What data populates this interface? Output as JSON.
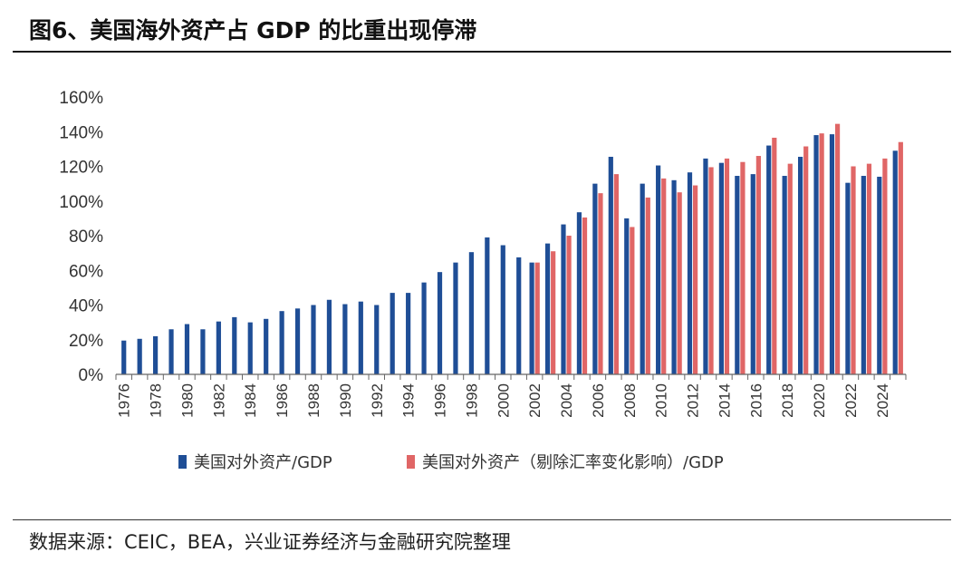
{
  "title": "图6、美国海外资产占 GDP 的比重出现停滞",
  "source": "数据来源：CEIC，BEA，兴业证券经济与金融研究院整理",
  "chart_data": {
    "type": "bar",
    "categories": [
      "1976",
      "1977",
      "1978",
      "1979",
      "1980",
      "1981",
      "1982",
      "1983",
      "1984",
      "1985",
      "1986",
      "1987",
      "1988",
      "1989",
      "1990",
      "1991",
      "1992",
      "1993",
      "1994",
      "1995",
      "1996",
      "1997",
      "1998",
      "1999",
      "2000",
      "2001",
      "2002",
      "2003",
      "2004",
      "2005",
      "2006",
      "2007",
      "2008",
      "2009",
      "2010",
      "2011",
      "2012",
      "2013",
      "2014",
      "2015",
      "2016",
      "2017",
      "2018",
      "2019",
      "2020",
      "2021",
      "2022",
      "2023",
      "2024",
      "2025"
    ],
    "x_tick_labels": [
      "1976",
      "1978",
      "1980",
      "1982",
      "1984",
      "1986",
      "1988",
      "1990",
      "1992",
      "1994",
      "1996",
      "1998",
      "2000",
      "2002",
      "2004",
      "2006",
      "2008",
      "2010",
      "2012",
      "2014",
      "2016",
      "2018",
      "2020",
      "2022",
      "2024"
    ],
    "series": [
      {
        "name": "美国对外资产/GDP",
        "color": "#1f4e96",
        "values": [
          19.5,
          20.5,
          22,
          26,
          29,
          26,
          30.5,
          33,
          30,
          32,
          36.5,
          38,
          40,
          43,
          40.5,
          42,
          40,
          47,
          47,
          53,
          59,
          64.5,
          70.5,
          79,
          74.5,
          67.5,
          64.5,
          75.5,
          86.5,
          93.5,
          110,
          125.5,
          90,
          110,
          120.5,
          112,
          116.5,
          124.5,
          122,
          114.5,
          115.5,
          132,
          114.5,
          125.5,
          138,
          138.5,
          110.5,
          114.5,
          114,
          129
        ]
      },
      {
        "name": "美国对外资产（剔除汇率变化影响）/GDP",
        "color": "#e06666",
        "values": [
          null,
          null,
          null,
          null,
          null,
          null,
          null,
          null,
          null,
          null,
          null,
          null,
          null,
          null,
          null,
          null,
          null,
          null,
          null,
          null,
          null,
          null,
          null,
          null,
          null,
          null,
          64.5,
          71,
          80,
          90.5,
          104.5,
          115.5,
          85,
          102,
          113,
          105,
          109,
          119.5,
          124.5,
          122.5,
          126,
          136.5,
          121.5,
          131.5,
          139,
          144.5,
          120,
          121.5,
          124.5,
          134
        ]
      }
    ],
    "y_ticks": [
      "0%",
      "20%",
      "40%",
      "60%",
      "80%",
      "100%",
      "120%",
      "140%",
      "160%"
    ],
    "ylim": [
      0,
      160
    ],
    "legend_position": "bottom"
  }
}
